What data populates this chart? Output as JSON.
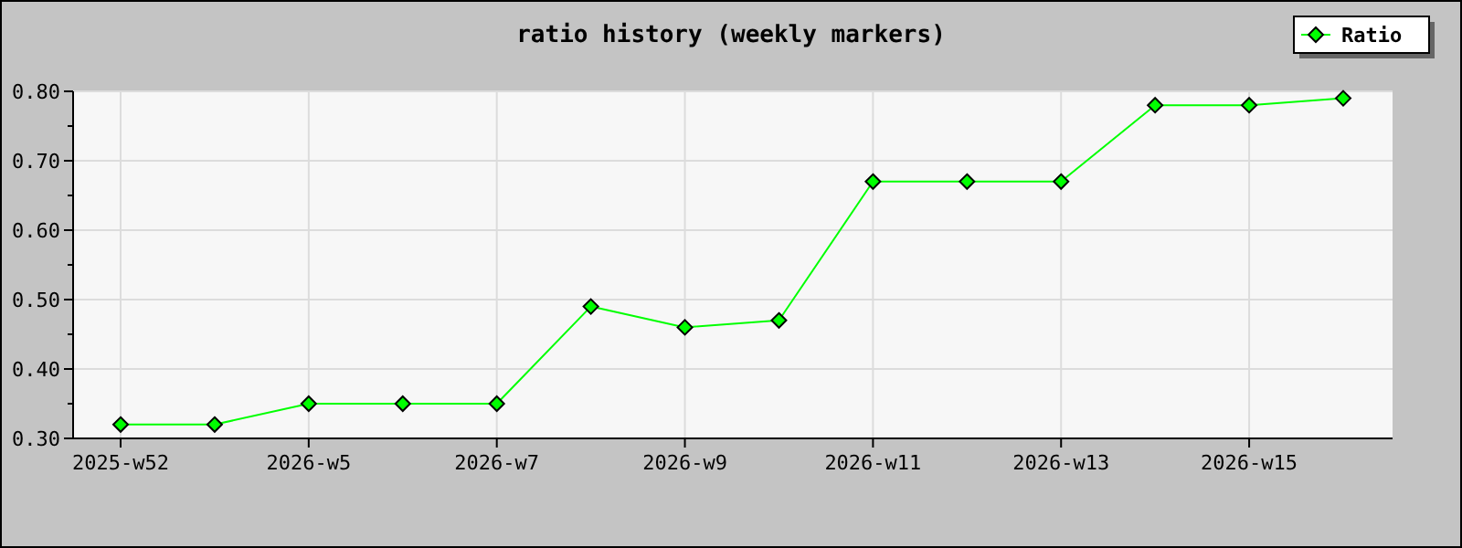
{
  "chart_data": {
    "type": "line",
    "title": "ratio history (weekly markers)",
    "categories": [
      "2025-w52",
      null,
      "2026-w5",
      null,
      "2026-w7",
      null,
      "2026-w9",
      null,
      "2026-w11",
      null,
      "2026-w13",
      null,
      "2026-w15",
      null
    ],
    "series": [
      {
        "name": "Ratio",
        "color": "#00ff00",
        "values": [
          0.32,
          0.32,
          0.35,
          0.35,
          0.35,
          0.49,
          0.46,
          0.47,
          0.67,
          0.67,
          0.67,
          0.78,
          0.78,
          0.79
        ]
      }
    ],
    "ylim": [
      0.3,
      0.8
    ],
    "yticks": [
      {
        "value": 0.3,
        "label": "0.30"
      },
      {
        "value": 0.35,
        "label": null
      },
      {
        "value": 0.4,
        "label": "0.40"
      },
      {
        "value": 0.45,
        "label": null
      },
      {
        "value": 0.5,
        "label": "0.50"
      },
      {
        "value": 0.55,
        "label": null
      },
      {
        "value": 0.6,
        "label": "0.60"
      },
      {
        "value": 0.65,
        "label": null
      },
      {
        "value": 0.7,
        "label": "0.70"
      },
      {
        "value": 0.75,
        "label": null
      },
      {
        "value": 0.8,
        "label": "0.80"
      }
    ],
    "grid": true,
    "legend": "top right",
    "marker": "diamond",
    "line_style": "solid"
  }
}
